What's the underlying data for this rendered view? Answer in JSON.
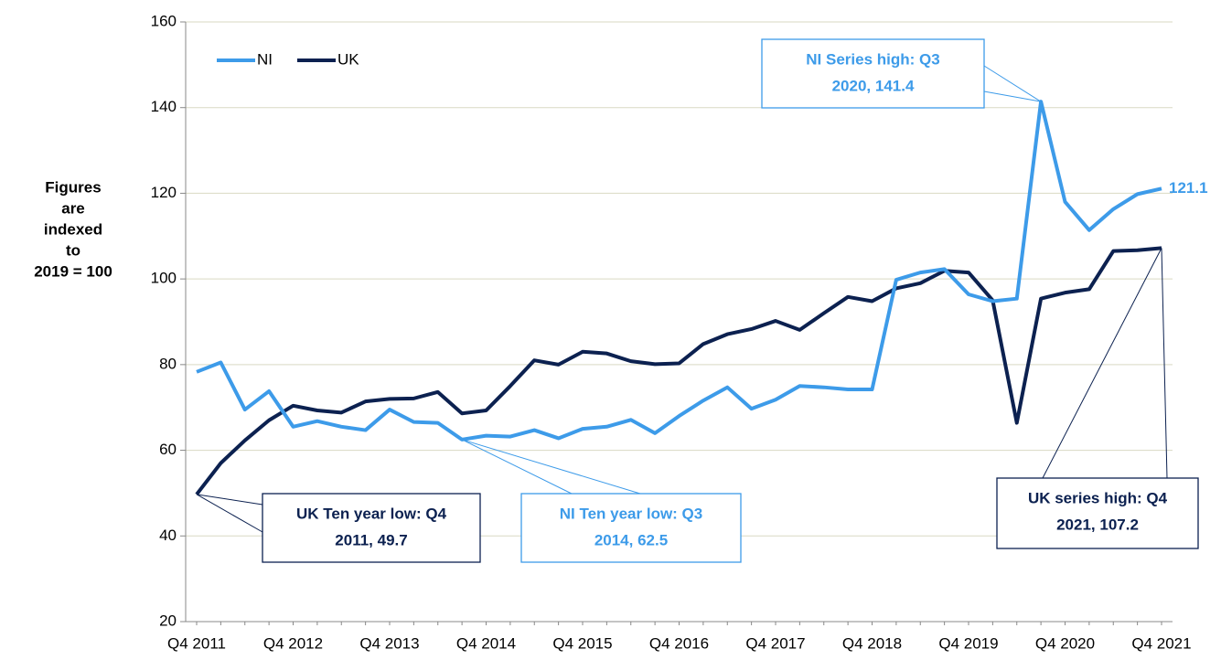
{
  "chart_data": {
    "type": "line",
    "y_label": [
      "Figures",
      "are",
      "indexed",
      "to",
      "2019 = 100"
    ],
    "categories": [
      "Q4 2011",
      null,
      null,
      null,
      "Q4 2012",
      null,
      null,
      null,
      "Q4 2013",
      null,
      null,
      null,
      "Q4 2014",
      null,
      null,
      null,
      "Q4 2015",
      null,
      null,
      null,
      "Q4 2016",
      null,
      null,
      null,
      "Q4 2017",
      null,
      null,
      null,
      "Q4 2018",
      null,
      null,
      null,
      "Q4 2019",
      null,
      null,
      null,
      "Q4 2020",
      null,
      null,
      null,
      "Q4 2021"
    ],
    "series": [
      {
        "name": "NI",
        "color": "#3d9be9",
        "values": [
          78.3,
          80.5,
          69.5,
          73.8,
          65.5,
          66.8,
          65.5,
          64.7,
          69.5,
          66.6,
          66.4,
          62.5,
          63.4,
          63.2,
          64.7,
          62.8,
          65.0,
          65.5,
          67.1,
          64.0,
          68.0,
          71.6,
          74.7,
          69.7,
          71.8,
          75.0,
          74.7,
          74.2,
          74.2,
          99.8,
          101.5,
          102.3,
          96.4,
          94.8,
          95.4,
          141.4,
          118.0,
          111.4,
          116.3,
          119.8,
          121.1
        ]
      },
      {
        "name": "UK",
        "color": "#0c2150",
        "values": [
          49.7,
          57.0,
          62.3,
          67.0,
          70.4,
          69.3,
          68.8,
          71.4,
          72.0,
          72.1,
          73.6,
          68.6,
          69.3,
          75.0,
          81.0,
          80.0,
          83.0,
          82.6,
          80.8,
          80.1,
          80.3,
          84.8,
          87.1,
          88.3,
          90.2,
          88.1,
          92.0,
          95.8,
          94.8,
          97.8,
          99.0,
          101.9,
          101.5,
          95.0,
          66.4,
          95.4,
          96.8,
          97.6,
          106.5,
          106.7,
          107.2
        ]
      }
    ],
    "ylim": [
      20,
      160
    ],
    "yticks": [
      20,
      40,
      60,
      80,
      100,
      120,
      140,
      160
    ],
    "grid": true,
    "legend": "top-left",
    "annotations": [
      {
        "lines": [
          "NI Series high: Q3",
          "2020, 141.4"
        ],
        "color": "#3d9be9"
      },
      {
        "lines": [
          "UK Ten year low: Q4",
          "2011, 49.7"
        ],
        "color": "#0c2150"
      },
      {
        "lines": [
          "NI Ten year low: Q3",
          "2014, 62.5"
        ],
        "color": "#3d9be9"
      },
      {
        "lines": [
          "UK series high: Q4",
          "2021, 107.2"
        ],
        "color": "#0c2150"
      }
    ]
  }
}
